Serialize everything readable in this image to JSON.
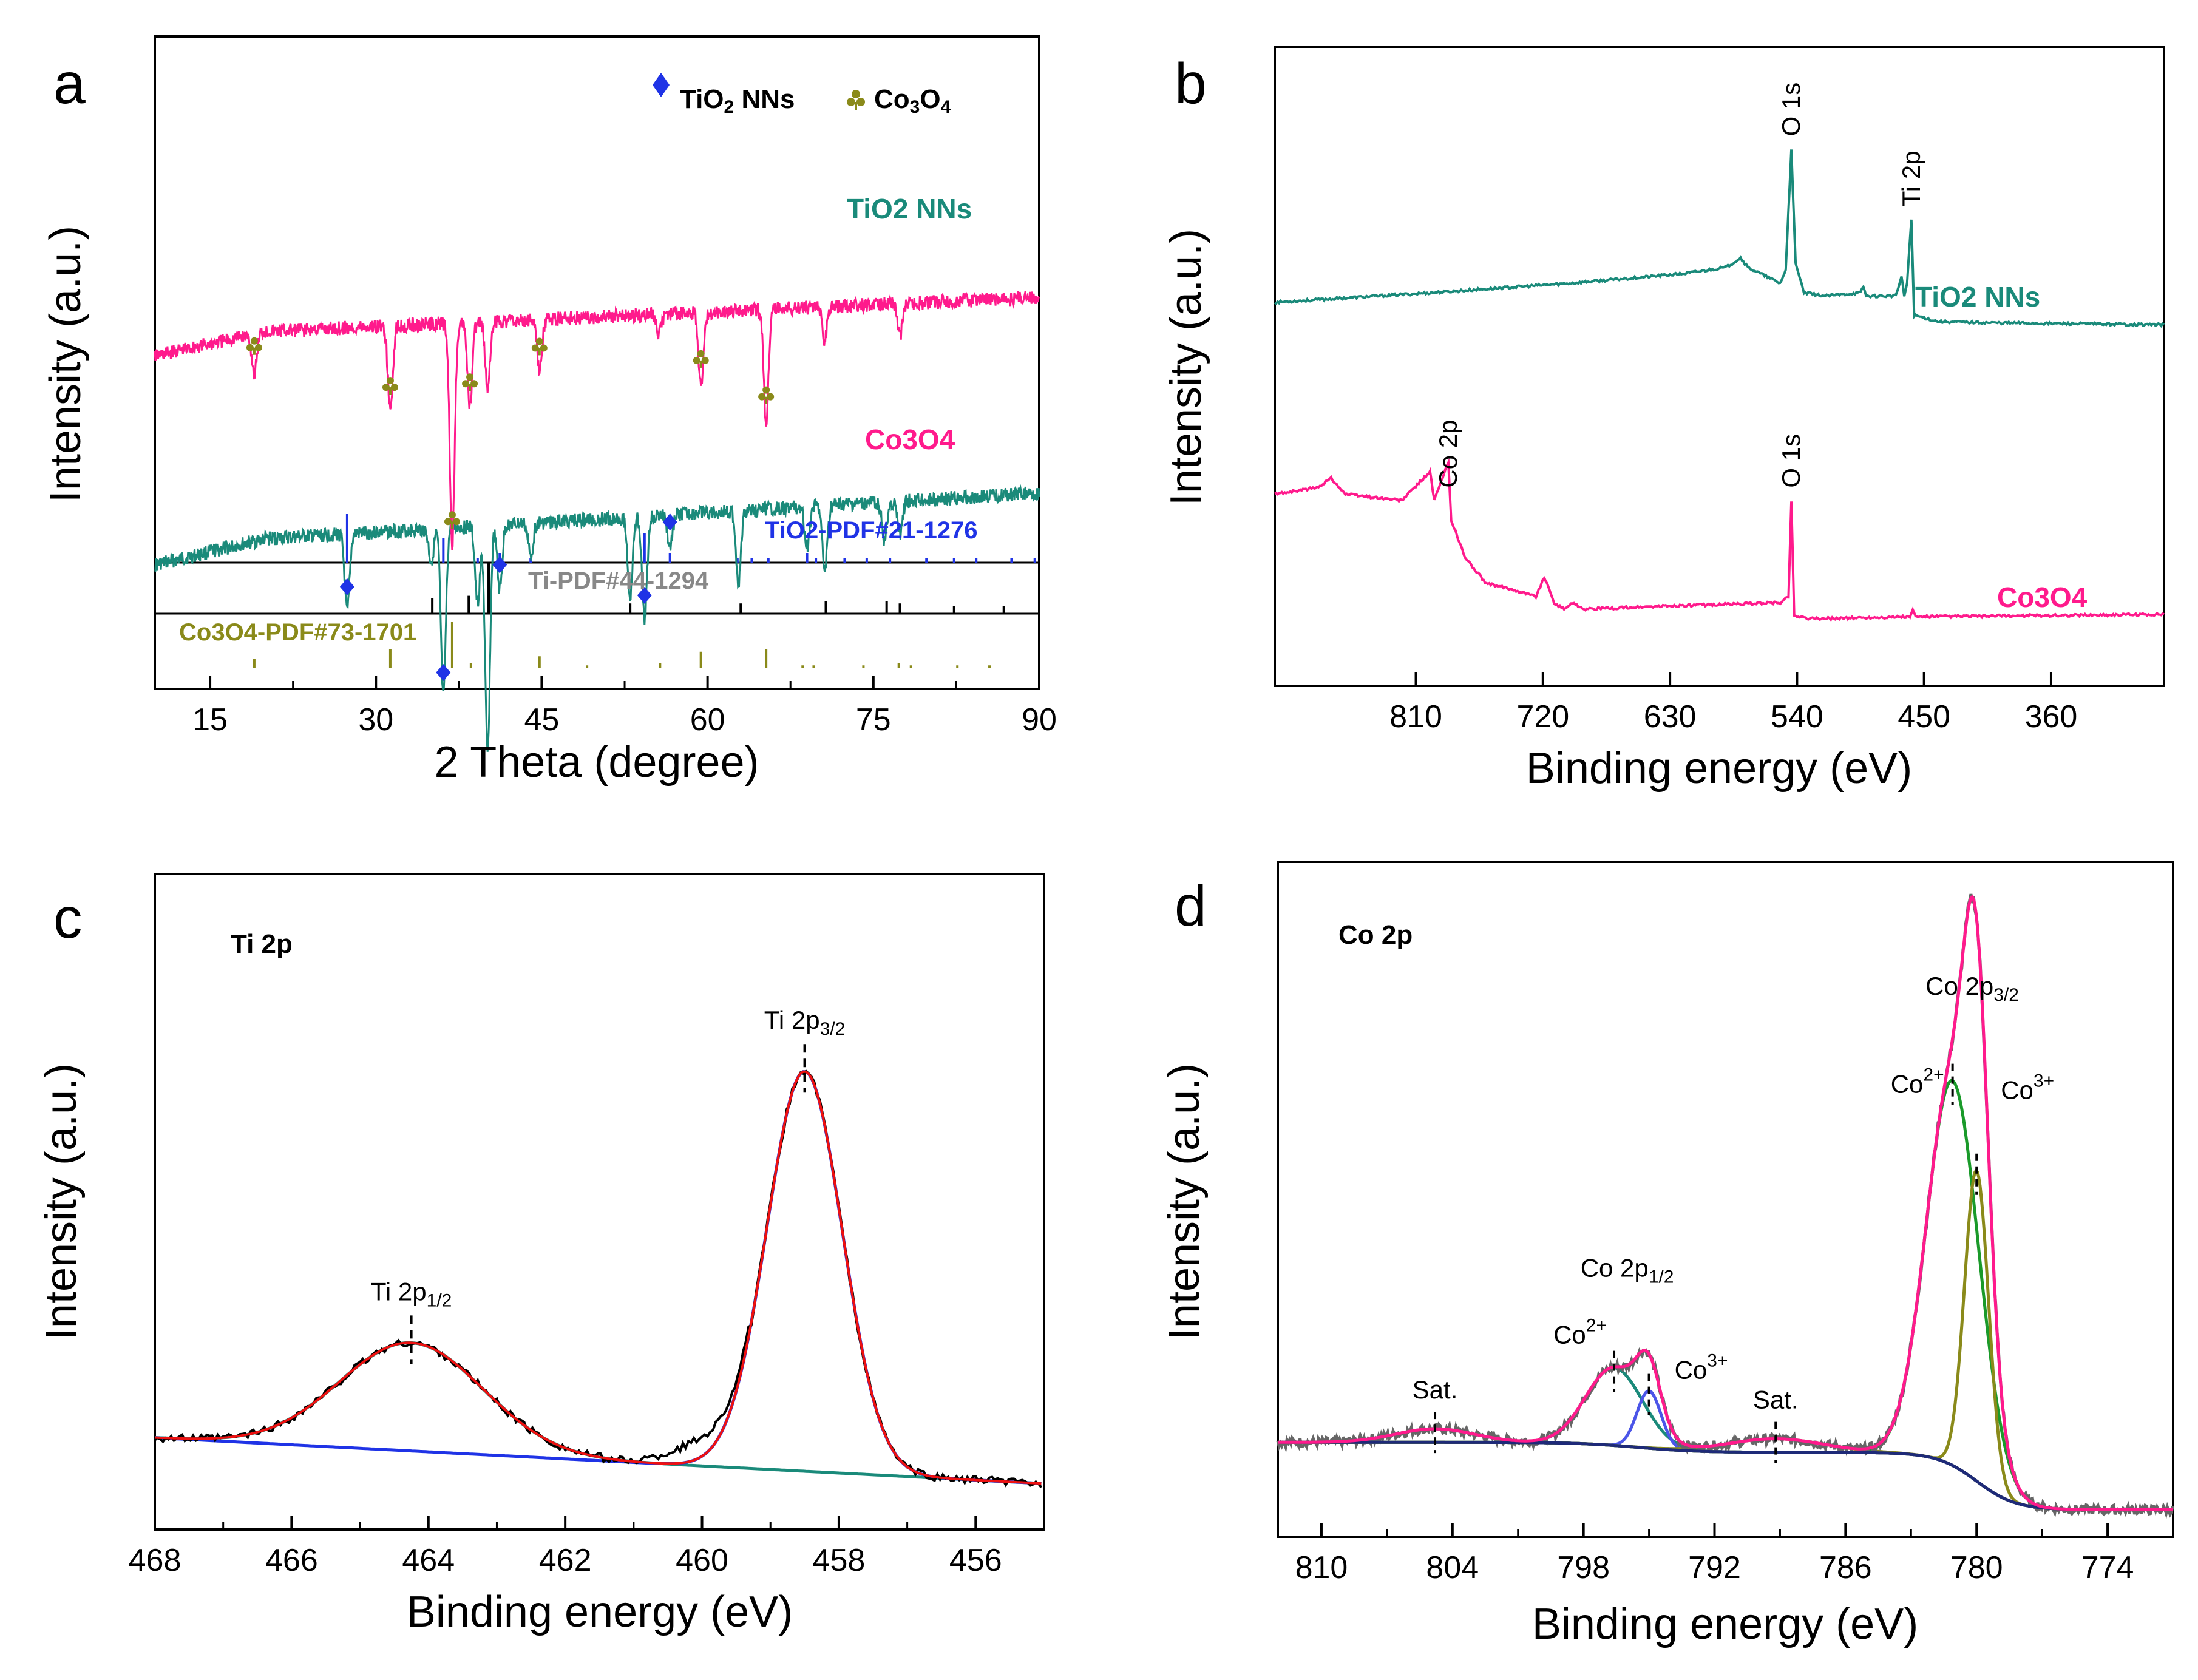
{
  "chart_data": [
    {
      "panel": "a",
      "type": "line",
      "xlabel": "2 Theta (degree)",
      "ylabel": "Intensity (a.u.)",
      "xlim": [
        10,
        90
      ],
      "xticks": [
        "15",
        "30",
        "45",
        "60",
        "75",
        "90"
      ],
      "xtick_values": [
        15,
        30,
        45,
        60,
        75,
        90
      ],
      "legend": [
        {
          "label": "TiO2 NNs",
          "marker": "diamond",
          "color": "#1f33e6"
        },
        {
          "label": "Co3O4",
          "marker": "club",
          "color": "#8a8a1a"
        }
      ],
      "series": [
        {
          "name": "TiO2 NNs",
          "color": "#1a8a7a",
          "baseline": [
            0.78,
            0.7
          ],
          "peaks": [
            [
              27.4,
              0.12
            ],
            [
              35.0,
              0.05
            ],
            [
              36.1,
              0.26
            ],
            [
              39.2,
              0.12
            ],
            [
              40.1,
              0.35
            ],
            [
              41.2,
              0.1
            ],
            [
              44.0,
              0.05
            ],
            [
              53.0,
              0.12
            ],
            [
              54.3,
              0.16
            ],
            [
              56.6,
              0.05
            ],
            [
              62.8,
              0.11
            ],
            [
              69.0,
              0.06
            ],
            [
              70.6,
              0.1
            ],
            [
              76.0,
              0.06
            ],
            [
              77.4,
              0.05
            ]
          ],
          "marked_peaks": [
            27.4,
            36.1,
            41.2,
            54.3,
            56.6
          ]
        },
        {
          "name": "Co3O4",
          "color": "#ff1a8c",
          "baseline": [
            0.46,
            0.4
          ],
          "peaks": [
            [
              19.0,
              0.06
            ],
            [
              31.3,
              0.13
            ],
            [
              36.9,
              0.34
            ],
            [
              38.5,
              0.13
            ],
            [
              40.1,
              0.1
            ],
            [
              44.8,
              0.08
            ],
            [
              55.6,
              0.03
            ],
            [
              59.4,
              0.11
            ],
            [
              65.3,
              0.17
            ],
            [
              70.6,
              0.05
            ],
            [
              77.4,
              0.05
            ]
          ],
          "marked_peaks": [
            19.0,
            31.3,
            36.9,
            38.5,
            44.8,
            59.4,
            65.3
          ]
        }
      ],
      "references": [
        {
          "name": "TiO2-PDF#21-1276",
          "color": "#1f33e6",
          "lines": [
            [
              27.4,
              1.0
            ],
            [
              36.1,
              0.5
            ],
            [
              39.2,
              0.1
            ],
            [
              41.2,
              0.2
            ],
            [
              44.0,
              0.1
            ],
            [
              54.3,
              0.6
            ],
            [
              56.6,
              0.2
            ],
            [
              62.7,
              0.1
            ],
            [
              64.0,
              0.1
            ],
            [
              65.5,
              0.1
            ],
            [
              69.0,
              0.2
            ],
            [
              69.8,
              0.1
            ],
            [
              72.4,
              0.1
            ],
            [
              74.4,
              0.1
            ],
            [
              76.5,
              0.1
            ],
            [
              79.8,
              0.1
            ],
            [
              82.3,
              0.1
            ],
            [
              84.3,
              0.1
            ],
            [
              87.5,
              0.1
            ],
            [
              89.6,
              0.1
            ]
          ]
        },
        {
          "name": "Ti-PDF#44-1294",
          "color": "#000000",
          "lines": [
            [
              35.1,
              0.3
            ],
            [
              38.4,
              0.35
            ],
            [
              40.2,
              1.0
            ],
            [
              53.0,
              0.2
            ],
            [
              63.0,
              0.2
            ],
            [
              70.7,
              0.25
            ],
            [
              76.2,
              0.25
            ],
            [
              77.4,
              0.2
            ],
            [
              82.3,
              0.15
            ],
            [
              86.8,
              0.15
            ]
          ]
        },
        {
          "name": "Co3O4-PDF#73-1701",
          "color": "#8a8a1a",
          "lines": [
            [
              19.0,
              0.2
            ],
            [
              31.3,
              0.4
            ],
            [
              36.9,
              1.0
            ],
            [
              38.6,
              0.1
            ],
            [
              44.8,
              0.25
            ],
            [
              49.1,
              0.05
            ],
            [
              55.7,
              0.1
            ],
            [
              59.4,
              0.35
            ],
            [
              65.3,
              0.4
            ],
            [
              68.6,
              0.05
            ],
            [
              69.6,
              0.05
            ],
            [
              74.1,
              0.05
            ],
            [
              77.3,
              0.1
            ],
            [
              78.4,
              0.05
            ],
            [
              82.6,
              0.05
            ],
            [
              85.5,
              0.05
            ]
          ]
        }
      ],
      "labels": {
        "series_tio2": "TiO2 NNs",
        "series_co3o4": "Co3O4",
        "ref_tio2": "TiO2-PDF#21-1276",
        "ref_ti": "Ti-PDF#44-1294",
        "ref_co3o4": "Co3O4-PDF#73-1701"
      }
    },
    {
      "panel": "b",
      "type": "line",
      "xlabel": "Binding energy (eV)",
      "ylabel": "Intensity (a.u.)",
      "xlim": [
        910,
        280
      ],
      "xticks": [
        "810",
        "720",
        "630",
        "540",
        "450",
        "360"
      ],
      "xtick_values": [
        810,
        720,
        630,
        540,
        450,
        360
      ],
      "series": [
        {
          "name": "TiO2 NNs",
          "color": "#1a8a7a",
          "points": [
            [
              910,
              0.6
            ],
            [
              800,
              0.615
            ],
            [
              700,
              0.63
            ],
            [
              620,
              0.645
            ],
            [
              590,
              0.655
            ],
            [
              580,
              0.67
            ],
            [
              575,
              0.655
            ],
            [
              552,
              0.63
            ],
            [
              548,
              0.65
            ],
            [
              544,
              0.84
            ],
            [
              541,
              0.66
            ],
            [
              535,
              0.615
            ],
            [
              520,
              0.61
            ],
            [
              495,
              0.615
            ],
            [
              493,
              0.625
            ],
            [
              491,
              0.61
            ],
            [
              470,
              0.61
            ],
            [
              466,
              0.64
            ],
            [
              464,
              0.61
            ],
            [
              462,
              0.63
            ],
            [
              459,
              0.73
            ],
            [
              457,
              0.58
            ],
            [
              440,
              0.57
            ],
            [
              400,
              0.568
            ],
            [
              280,
              0.565
            ]
          ]
        },
        {
          "name": "Co3O4",
          "color": "#ff1a8c",
          "points": [
            [
              910,
              0.3
            ],
            [
              880,
              0.31
            ],
            [
              870,
              0.325
            ],
            [
              860,
              0.3
            ],
            [
              820,
              0.29
            ],
            [
              800,
              0.335
            ],
            [
              797,
              0.29
            ],
            [
              787,
              0.35
            ],
            [
              785,
              0.26
            ],
            [
              775,
              0.2
            ],
            [
              760,
              0.16
            ],
            [
              740,
              0.15
            ],
            [
              725,
              0.14
            ],
            [
              719,
              0.17
            ],
            [
              712,
              0.13
            ],
            [
              705,
              0.12
            ],
            [
              700,
              0.13
            ],
            [
              690,
              0.12
            ],
            [
              630,
              0.125
            ],
            [
              552,
              0.13
            ],
            [
              546,
              0.14
            ],
            [
              544,
              0.29
            ],
            [
              542,
              0.11
            ],
            [
              530,
              0.105
            ],
            [
              460,
              0.108
            ],
            [
              458,
              0.118
            ],
            [
              456,
              0.108
            ],
            [
              280,
              0.112
            ]
          ]
        }
      ],
      "annotations": [
        {
          "label": "O 1s",
          "series": "TiO2 NNs",
          "x": 544
        },
        {
          "label": "Ti 2p",
          "series": "TiO2 NNs",
          "x": 459
        },
        {
          "label": "Co 2p",
          "series": "Co3O4",
          "x": 787
        },
        {
          "label": "O 1s",
          "series": "Co3O4",
          "x": 544
        }
      ],
      "labels": {
        "series_tio2": "TiO2 NNs",
        "series_co3o4": "Co3O4",
        "ann_o1s_top": "O 1s",
        "ann_ti2p": "Ti 2p",
        "ann_co2p": "Co 2p",
        "ann_o1s_bottom": "O 1s"
      }
    },
    {
      "panel": "c",
      "type": "line",
      "title": "Ti 2p",
      "xlabel": "Binding energy (eV)",
      "ylabel": "Intensity (a.u.)",
      "xlim": [
        468,
        455
      ],
      "xticks": [
        "468",
        "466",
        "464",
        "462",
        "460",
        "458",
        "456"
      ],
      "xtick_values": [
        468,
        466,
        464,
        462,
        460,
        458,
        456
      ],
      "background": [
        [
          468,
          0.14
        ],
        [
          455,
          0.07
        ]
      ],
      "components": [
        {
          "name": "Ti 2p1/2",
          "center": 464.25,
          "height": 0.165,
          "sigma": 1.05,
          "color": "#1a8a7a"
        },
        {
          "name": "Ti 2p3/2",
          "center": 458.5,
          "height": 0.61,
          "sigma": 0.55,
          "color": "#1f33e6"
        }
      ],
      "series": [
        {
          "name": "raw",
          "color": "#000000"
        },
        {
          "name": "envelope",
          "color": "#ee1111"
        },
        {
          "name": "background",
          "color": "#1f33e6"
        }
      ],
      "annotations": [
        {
          "text": "Ti 2p",
          "sub": "1/2",
          "x": 464.25
        },
        {
          "text": "Ti 2p",
          "sub": "3/2",
          "x": 458.5
        }
      ],
      "labels": {
        "title": "Ti 2p",
        "peak1_main": "Ti 2p",
        "peak1_sub": "1/2",
        "peak2_main": "Ti 2p",
        "peak2_sub": "3/2"
      }
    },
    {
      "panel": "d",
      "type": "line",
      "title": "Co 2p",
      "xlabel": "Binding energy (eV)",
      "ylabel": "Intensity (a.u.)",
      "xlim": [
        812,
        771
      ],
      "xticks": [
        "810",
        "804",
        "798",
        "792",
        "786",
        "780",
        "774"
      ],
      "xtick_values": [
        810,
        804,
        798,
        792,
        786,
        780,
        774
      ],
      "background_steps": {
        "base": 0.04,
        "steps": [
          [
            795.5,
            0.015,
            1.4
          ],
          [
            780.0,
            0.085,
            0.9
          ]
        ],
        "slope_end": 0.105
      },
      "components": [
        {
          "name": "Sat.",
          "center": 804.8,
          "height": 0.02,
          "sigma": 1.8,
          "color": "#1e2a78"
        },
        {
          "name": "Co2+ 2p1/2",
          "center": 796.6,
          "height": 0.115,
          "sigma": 1.3,
          "color": "#1a8a7a"
        },
        {
          "name": "Co3+ 2p1/2",
          "center": 795.0,
          "height": 0.085,
          "sigma": 0.55,
          "color": "#4b55e8"
        },
        {
          "name": "Sat.",
          "center": 789.2,
          "height": 0.02,
          "sigma": 2.2,
          "color": "#8a8a1a"
        },
        {
          "name": "Co2+ 2p3/2",
          "center": 781.1,
          "height": 0.57,
          "sigma": 1.2,
          "color": "#1a9a2a"
        },
        {
          "name": "Co3+ 2p3/2",
          "center": 780.0,
          "height": 0.46,
          "sigma": 0.55,
          "color": "#8a8a1a"
        }
      ],
      "series": [
        {
          "name": "raw",
          "color": "#666666"
        },
        {
          "name": "envelope",
          "color": "#ff1a8c"
        },
        {
          "name": "background",
          "color": "#1e2a78"
        }
      ],
      "annotations": [
        {
          "text": "Sat.",
          "x": 804.8
        },
        {
          "text": "Co",
          "sup": "2+",
          "x": 796.6
        },
        {
          "text": "Co 2p",
          "sub": "1/2",
          "x": 796.0
        },
        {
          "text": "Co",
          "sup": "3+",
          "x": 795.0
        },
        {
          "text": "Sat.",
          "x": 789.2
        },
        {
          "text": "Co",
          "sup": "2+",
          "x": 781.1
        },
        {
          "text": "Co 2p",
          "sub": "3/2",
          "x": 780.2
        },
        {
          "text": "Co",
          "sup": "3+",
          "x": 780.0
        }
      ],
      "labels": {
        "title": "Co 2p",
        "sat1": "Sat.",
        "co2a_main": "Co",
        "co2a_sup": "2+",
        "p12_main": "Co 2p",
        "p12_sub": "1/2",
        "co3a_main": "Co",
        "co3a_sup": "3+",
        "sat2": "Sat.",
        "co2b_main": "Co",
        "co2b_sup": "2+",
        "p32_main": "Co 2p",
        "p32_sub": "3/2",
        "co3b_main": "Co",
        "co3b_sup": "3+"
      }
    }
  ],
  "panel_letters": {
    "a": "a",
    "b": "b",
    "c": "c",
    "d": "d"
  },
  "legend_a": {
    "tio2_main": "TiO",
    "tio2_sub": "2",
    "tio2_tail": " NNs",
    "co_main": "Co",
    "co_sub1": "3",
    "co_mid": "O",
    "co_sub2": "4"
  },
  "colors": {
    "teal": "#1a8a7a",
    "pink": "#ff1a8c",
    "blue": "#1f33e6",
    "olive": "#8a8a1a",
    "green": "#1a9a2a",
    "navy": "#1e2a78",
    "red": "#ee1111"
  }
}
